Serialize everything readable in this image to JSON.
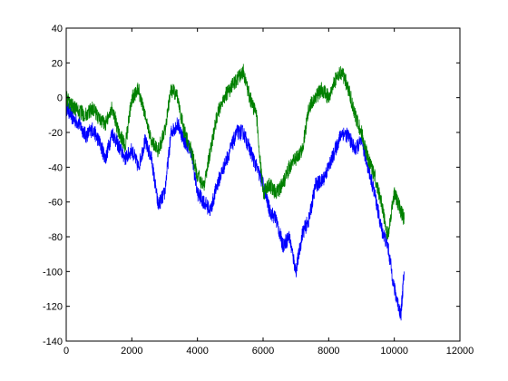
{
  "chart_data": {
    "type": "line",
    "title": "",
    "xlabel": "",
    "ylabel": "",
    "xlim": [
      0,
      12000
    ],
    "ylim": [
      -140,
      40
    ],
    "xticks": [
      0,
      2000,
      4000,
      6000,
      8000,
      10000,
      12000
    ],
    "yticks": [
      40,
      20,
      0,
      -20,
      -40,
      -60,
      -80,
      -100,
      -120,
      -140
    ],
    "xtick_labels": [
      "0",
      "2000",
      "4000",
      "6000",
      "8000",
      "10000",
      "12000"
    ],
    "ytick_labels": [
      "40",
      "20",
      "0",
      "-20",
      "-40",
      "-60",
      "-80",
      "-100",
      "-120",
      "-140"
    ],
    "grid": false,
    "legend": "none",
    "series": [
      {
        "color": "#0000ff",
        "x": [
          0,
          200,
          400,
          600,
          800,
          1000,
          1200,
          1400,
          1600,
          1800,
          2000,
          2200,
          2400,
          2600,
          2800,
          3000,
          3200,
          3400,
          3600,
          3800,
          4000,
          4200,
          4400,
          4600,
          4800,
          5000,
          5200,
          5400,
          5600,
          5800,
          6000,
          6200,
          6400,
          6600,
          6800,
          7000,
          7200,
          7400,
          7600,
          7800,
          8000,
          8200,
          8400,
          8600,
          8800,
          9000,
          9200,
          9400,
          9600,
          9800,
          10000,
          10200,
          10300
        ],
        "y": [
          -5,
          -12,
          -15,
          -22,
          -18,
          -25,
          -35,
          -20,
          -28,
          -35,
          -30,
          -40,
          -25,
          -35,
          -62,
          -55,
          -20,
          -15,
          -25,
          -30,
          -55,
          -60,
          -65,
          -50,
          -40,
          -30,
          -20,
          -20,
          -30,
          -40,
          -50,
          -65,
          -70,
          -85,
          -80,
          -100,
          -78,
          -70,
          -50,
          -48,
          -40,
          -30,
          -20,
          -22,
          -30,
          -25,
          -40,
          -55,
          -75,
          -85,
          -110,
          -125,
          -100
        ]
      },
      {
        "color": "#008000",
        "x": [
          0,
          200,
          400,
          600,
          800,
          1000,
          1200,
          1400,
          1600,
          1800,
          2000,
          2200,
          2400,
          2600,
          2800,
          3000,
          3200,
          3400,
          3600,
          3800,
          4000,
          4200,
          4400,
          4600,
          4800,
          5000,
          5200,
          5400,
          5600,
          5800,
          6000,
          6200,
          6400,
          6600,
          6800,
          7000,
          7200,
          7400,
          7600,
          7800,
          8000,
          8200,
          8400,
          8600,
          8800,
          9000,
          9200,
          9400,
          9600,
          9800,
          10000,
          10200,
          10300
        ],
        "y": [
          0,
          -5,
          -8,
          -10,
          -6,
          -12,
          -15,
          -5,
          -20,
          -28,
          0,
          5,
          -10,
          -25,
          -30,
          -20,
          5,
          0,
          -20,
          -30,
          -45,
          -50,
          -30,
          -10,
          0,
          5,
          10,
          15,
          0,
          -10,
          -55,
          -50,
          -55,
          -50,
          -40,
          -35,
          -30,
          -5,
          0,
          5,
          0,
          10,
          15,
          5,
          -10,
          -20,
          -35,
          -45,
          -60,
          -80,
          -55,
          -65,
          -70
        ]
      }
    ]
  }
}
